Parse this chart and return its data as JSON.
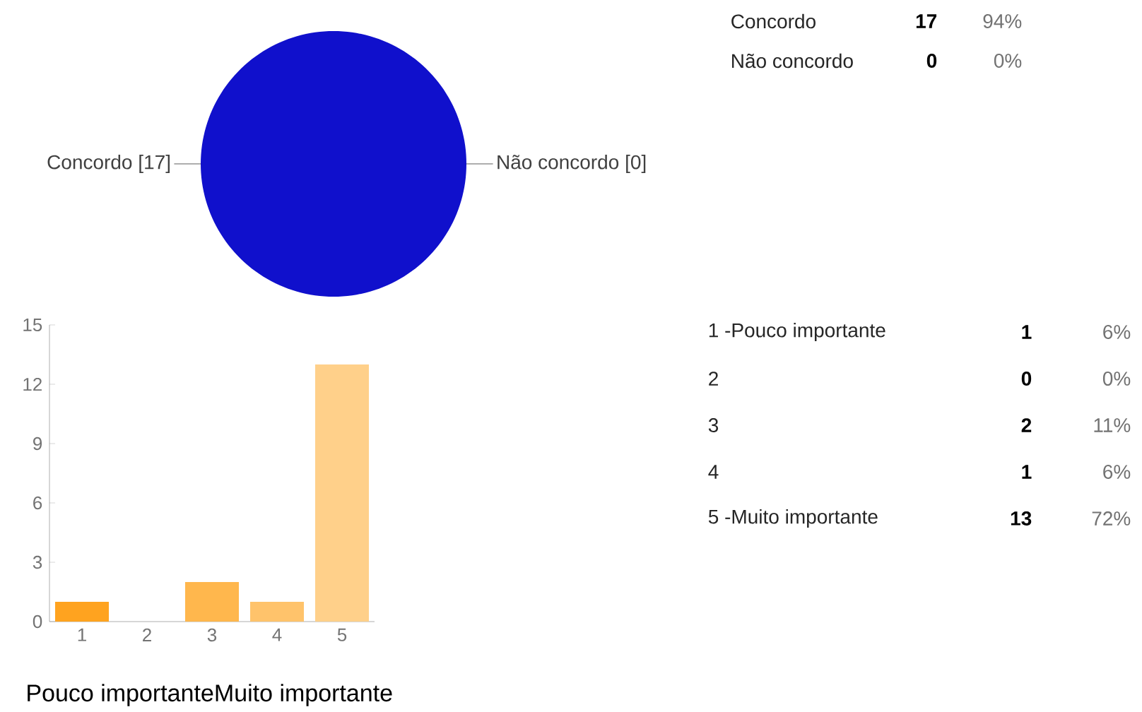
{
  "chart_data": [
    {
      "type": "pie",
      "categories": [
        "Concordo",
        "Não concordo"
      ],
      "values": [
        17,
        0
      ],
      "colors": [
        "#1010cc",
        "#dc3912"
      ],
      "value_labels": [
        "[17]",
        "[0]"
      ],
      "annotations": [
        "17",
        "94%",
        "0",
        "0%"
      ]
    },
    {
      "type": "bar",
      "categories": [
        "1",
        "2",
        "3",
        "4",
        "5"
      ],
      "values": [
        1,
        0,
        2,
        1,
        13
      ],
      "colors": [
        "#ffa31f",
        "#ffad3a",
        "#ffb74d",
        "#ffc36b",
        "#ffd08a"
      ],
      "ylim": [
        0,
        15
      ],
      "yticks": [
        0,
        3,
        6,
        9,
        12,
        15
      ],
      "annotations": [
        "Pouco importante",
        "Muito importante",
        "1 -Pouco importante",
        "2",
        "3",
        "4",
        "5 -Muito importante",
        "1",
        "6%",
        "0",
        "0%",
        "2",
        "11%",
        "1",
        "6%",
        "13",
        "72%"
      ]
    }
  ]
}
